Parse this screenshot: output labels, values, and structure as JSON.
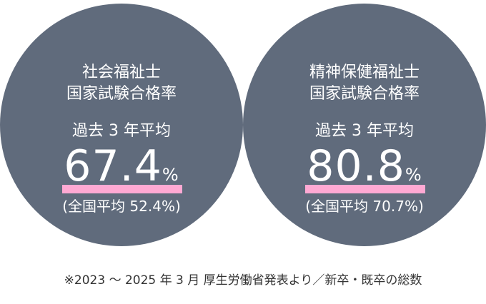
{
  "cards": [
    {
      "title1": "社会福祉士",
      "title2": "国家試験合格率",
      "avg_label": "過去 3 年平均",
      "value": "67.4",
      "unit": "%",
      "national": "(全国平均 52.4%)"
    },
    {
      "title1": "精神保健福祉士",
      "title2": "国家試験合格率",
      "avg_label": "過去 3 年平均",
      "value": "80.8",
      "unit": "%",
      "national": "(全国平均 70.7%)"
    }
  ],
  "note": "※2023 ～ 2025 年 3 月 厚生労働省発表より／新卒・既卒の総数",
  "colors": {
    "circle": "#606b7c",
    "highlight": "#ffa9d3"
  }
}
